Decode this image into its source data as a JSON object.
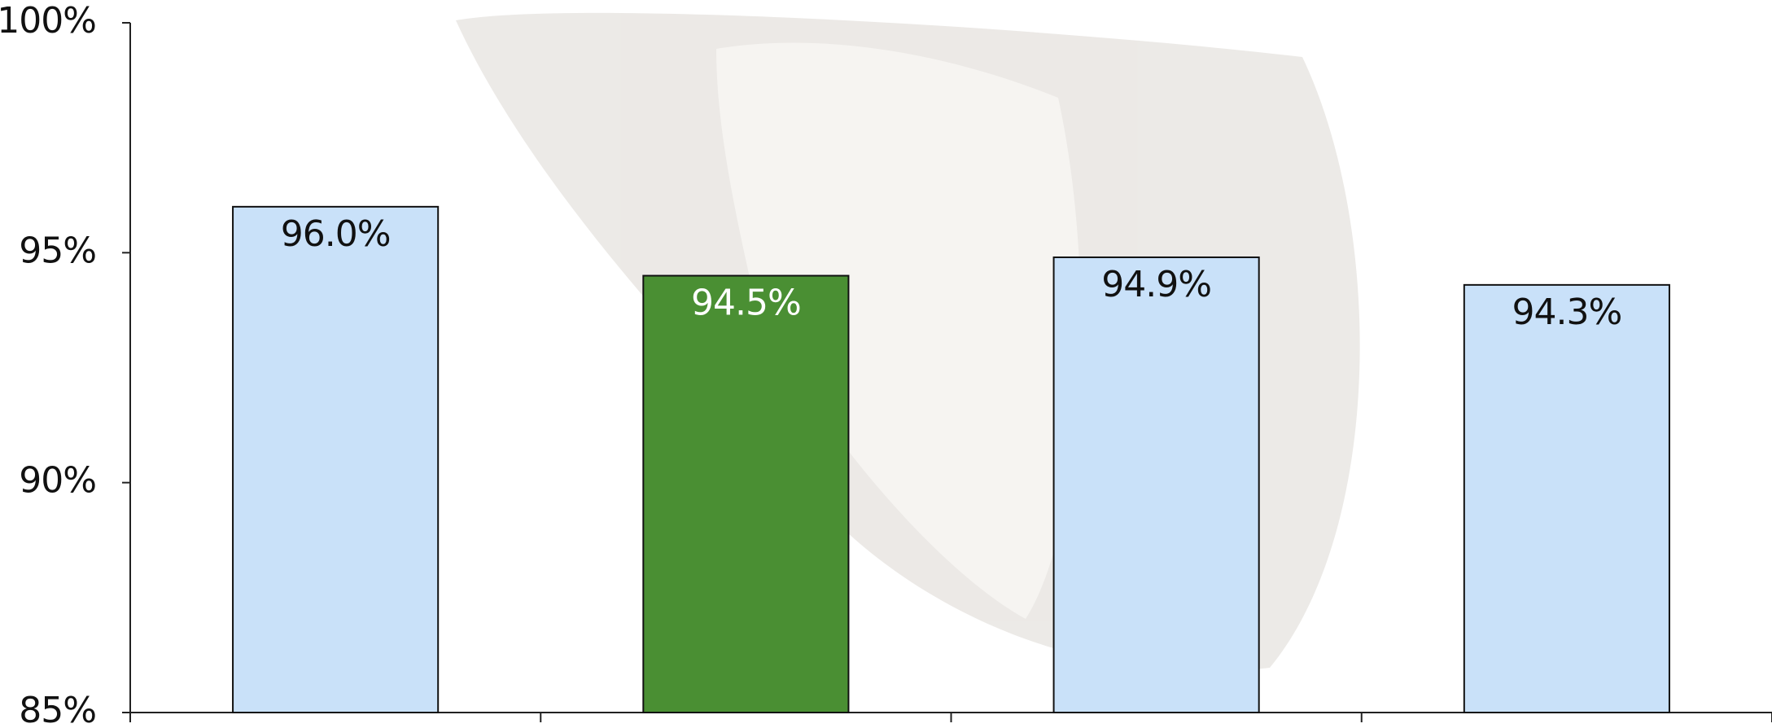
{
  "chart_data": {
    "type": "bar",
    "categories": [
      null,
      null,
      null,
      null
    ],
    "values": [
      96.0,
      94.5,
      94.9,
      94.3
    ],
    "value_labels": [
      "96.0%",
      "94.5%",
      "94.9%",
      "94.3%"
    ],
    "colors": [
      "#c9e1f9",
      "#4a8f33",
      "#c9e1f9",
      "#c9e1f9"
    ],
    "ylim": [
      85,
      100
    ],
    "yticks": [
      {
        "value": 85,
        "label": "85%"
      },
      {
        "value": 90,
        "label": "90%"
      },
      {
        "value": 95,
        "label": "95%"
      },
      {
        "value": 100,
        "label": "100%"
      }
    ]
  }
}
